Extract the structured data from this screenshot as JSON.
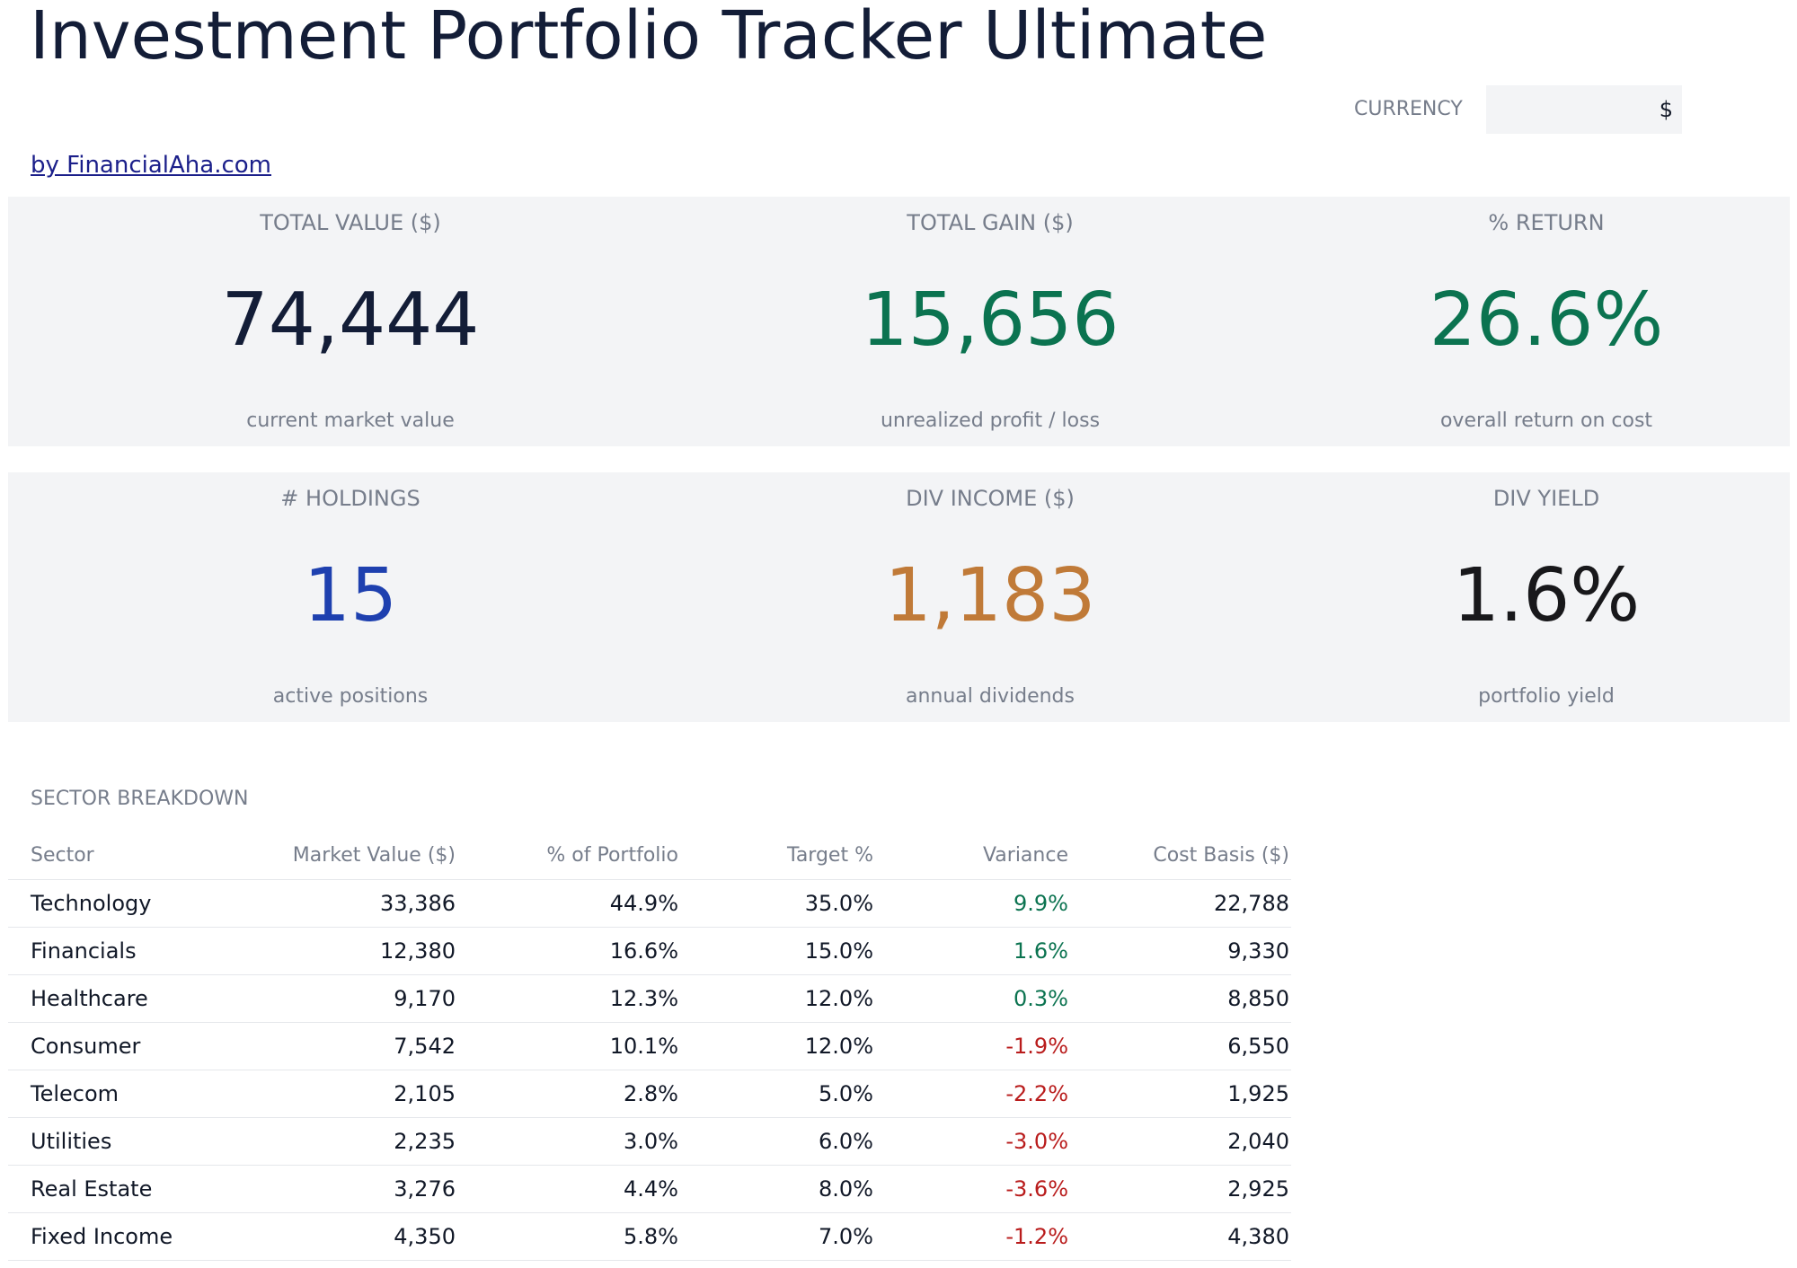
{
  "title": "Investment Portfolio Tracker Ultimate",
  "currency": {
    "label": "CURRENCY",
    "value": "$"
  },
  "byline": "by FinancialAha.com",
  "kpis_row1": [
    {
      "label": "TOTAL VALUE ($)",
      "value": "74,444",
      "sub": "current market value",
      "color": "#131d37"
    },
    {
      "label": "TOTAL GAIN ($)",
      "value": "15,656",
      "sub": "unrealized profit / loss",
      "color": "#0b7350"
    },
    {
      "label": "% RETURN",
      "value": "26.6%",
      "sub": "overall return on cost",
      "color": "#0b7350"
    }
  ],
  "kpis_row2": [
    {
      "label": "# HOLDINGS",
      "value": "15",
      "sub": "active positions",
      "color": "#1e40af"
    },
    {
      "label": "DIV INCOME ($)",
      "value": "1,183",
      "sub": "annual dividends",
      "color": "#c07a38"
    },
    {
      "label": "DIV YIELD",
      "value": "1.6%",
      "sub": "portfolio yield",
      "color": "#18181b"
    }
  ],
  "sector_breakdown": {
    "heading": "SECTOR BREAKDOWN",
    "columns": [
      "Sector",
      "Market Value ($)",
      "% of Portfolio",
      "Target %",
      "Variance",
      "Cost Basis ($)"
    ],
    "rows": [
      {
        "sector": "Technology",
        "market_value": "33,386",
        "pct_portfolio": "44.9%",
        "target": "35.0%",
        "variance": "9.9%",
        "variance_sign": "positive",
        "cost_basis": "22,788"
      },
      {
        "sector": "Financials",
        "market_value": "12,380",
        "pct_portfolio": "16.6%",
        "target": "15.0%",
        "variance": "1.6%",
        "variance_sign": "positive",
        "cost_basis": "9,330"
      },
      {
        "sector": "Healthcare",
        "market_value": "9,170",
        "pct_portfolio": "12.3%",
        "target": "12.0%",
        "variance": "0.3%",
        "variance_sign": "positive",
        "cost_basis": "8,850"
      },
      {
        "sector": "Consumer",
        "market_value": "7,542",
        "pct_portfolio": "10.1%",
        "target": "12.0%",
        "variance": "-1.9%",
        "variance_sign": "negative",
        "cost_basis": "6,550"
      },
      {
        "sector": "Telecom",
        "market_value": "2,105",
        "pct_portfolio": "2.8%",
        "target": "5.0%",
        "variance": "-2.2%",
        "variance_sign": "negative",
        "cost_basis": "1,925"
      },
      {
        "sector": "Utilities",
        "market_value": "2,235",
        "pct_portfolio": "3.0%",
        "target": "6.0%",
        "variance": "-3.0%",
        "variance_sign": "negative",
        "cost_basis": "2,040"
      },
      {
        "sector": "Real Estate",
        "market_value": "3,276",
        "pct_portfolio": "4.4%",
        "target": "8.0%",
        "variance": "-3.6%",
        "variance_sign": "negative",
        "cost_basis": "2,925"
      },
      {
        "sector": "Fixed Income",
        "market_value": "4,350",
        "pct_portfolio": "5.8%",
        "target": "7.0%",
        "variance": "-1.2%",
        "variance_sign": "negative",
        "cost_basis": "4,380"
      }
    ]
  },
  "colors": {
    "positive": "#0b7350",
    "negative": "#b91c1c",
    "muted_text": "#767d8b",
    "panel_bg": "#f3f4f6"
  }
}
